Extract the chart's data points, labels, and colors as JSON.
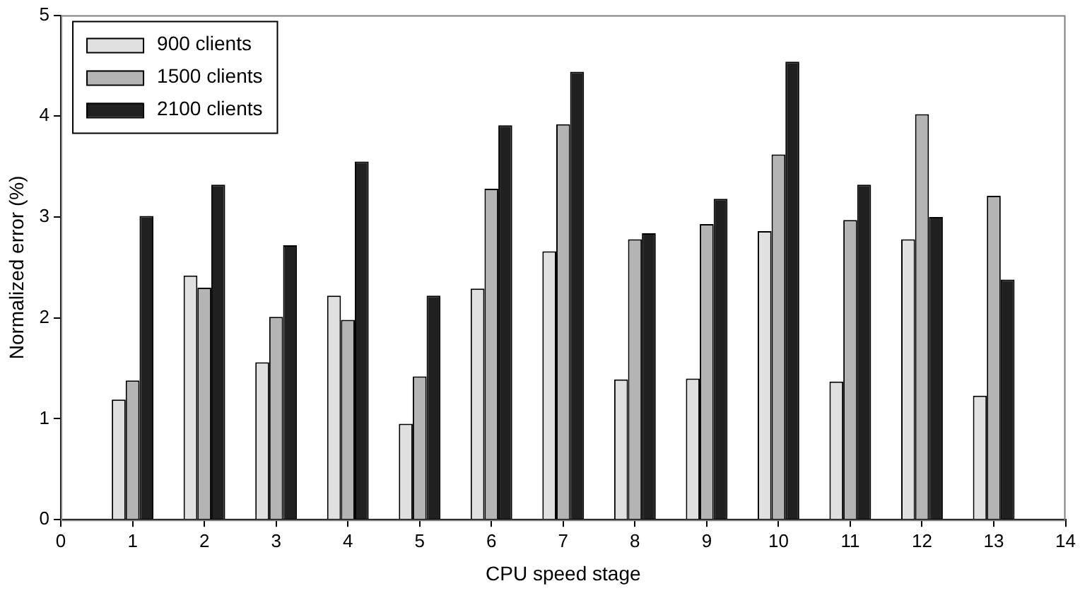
{
  "chart_data": {
    "type": "bar",
    "xlabel": "CPU speed stage",
    "ylabel": "Normalized error (%)",
    "x": [
      1,
      2,
      3,
      4,
      5,
      6,
      7,
      8,
      9,
      10,
      11,
      12,
      13
    ],
    "series": [
      {
        "name": "900 clients",
        "color": "#e0e0e0",
        "values": [
          1.19,
          2.42,
          1.56,
          2.22,
          0.95,
          2.29,
          2.66,
          1.39,
          1.4,
          2.86,
          1.37,
          2.78,
          1.23
        ]
      },
      {
        "name": "1500 clients",
        "color": "#b4b4b4",
        "values": [
          1.38,
          2.3,
          2.01,
          1.98,
          1.42,
          3.28,
          3.92,
          2.78,
          2.93,
          3.62,
          2.97,
          4.02,
          3.21
        ]
      },
      {
        "name": "2100 clients",
        "color": "#202020",
        "values": [
          3.01,
          3.32,
          2.72,
          3.55,
          2.22,
          3.91,
          4.44,
          2.84,
          3.18,
          4.54,
          3.32,
          3.0,
          2.38
        ]
      }
    ],
    "xlim": [
      0,
      14
    ],
    "xticks": [
      0,
      1,
      2,
      3,
      4,
      5,
      6,
      7,
      8,
      9,
      10,
      11,
      12,
      13,
      14
    ],
    "ylim": [
      0,
      5
    ],
    "yticks": [
      0,
      1,
      2,
      3,
      4,
      5
    ],
    "grid": false,
    "legend": "top left"
  }
}
